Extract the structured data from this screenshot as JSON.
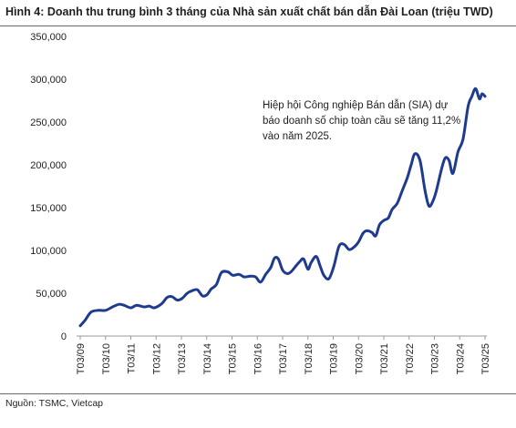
{
  "title": "Hình 4: Doanh thu trung bình 3 tháng của Nhà sản xuất chất bán dẫn Đài Loan (triệu TWD)",
  "source": "Nguồn: TSMC, Vietcap",
  "annotation": "Hiệp hội Công nghiệp Bán dẫn (SIA) dự báo doanh số chip toàn cầu sẽ tăng 11,2% vào năm 2025.",
  "colors": {
    "line": "#1f3b8f",
    "axis": "#9a9a9a"
  },
  "chart_data": {
    "type": "line",
    "title": "Hình 4: Doanh thu trung bình 3 tháng của Nhà sản xuất chất bán dẫn Đài Loan (triệu TWD)",
    "xlabel": "",
    "ylabel": "",
    "ylim": [
      0,
      350000
    ],
    "xlim": [
      2009.17,
      2025.17
    ],
    "grid": false,
    "legend": "none",
    "yticks": [
      0,
      50000,
      100000,
      150000,
      200000,
      250000,
      300000,
      350000
    ],
    "ytick_labels": [
      "0",
      "50,000",
      "100,000",
      "150,000",
      "200,000",
      "250,000",
      "300,000",
      "350,000"
    ],
    "xticks": [
      2009.17,
      2010.17,
      2011.17,
      2012.17,
      2013.17,
      2014.17,
      2015.17,
      2016.17,
      2017.17,
      2018.17,
      2019.17,
      2020.17,
      2021.17,
      2022.17,
      2023.17,
      2024.17,
      2025.17
    ],
    "xtick_labels": [
      "T03/09",
      "T03/10",
      "T03/11",
      "T03/12",
      "T03/13",
      "T03/14",
      "T03/15",
      "T03/16",
      "T03/17",
      "T03/18",
      "T03/19",
      "T03/20",
      "T03/21",
      "T03/22",
      "T03/23",
      "T03/24",
      "T03/25"
    ],
    "series": [
      {
        "x": [
          2009.17,
          2009.35,
          2009.6,
          2009.9,
          2010.17,
          2010.45,
          2010.7,
          2010.9,
          2011.17,
          2011.4,
          2011.7,
          2011.9,
          2012.1,
          2012.4,
          2012.6,
          2012.8,
          2013.0,
          2013.2,
          2013.4,
          2013.6,
          2013.8,
          2014.0,
          2014.17,
          2014.35,
          2014.55,
          2014.75,
          2015.0,
          2015.2,
          2015.45,
          2015.65,
          2015.9,
          2016.1,
          2016.3,
          2016.5,
          2016.7,
          2016.85,
          2017.0,
          2017.17,
          2017.35,
          2017.5,
          2017.7,
          2017.85,
          2018.0,
          2018.17,
          2018.3,
          2018.5,
          2018.65,
          2018.8,
          2019.0,
          2019.2,
          2019.4,
          2019.6,
          2019.8,
          2020.0,
          2020.17,
          2020.35,
          2020.5,
          2020.7,
          2020.85,
          2021.0,
          2021.17,
          2021.35,
          2021.5,
          2021.7,
          2021.9,
          2022.1,
          2022.25,
          2022.4,
          2022.6,
          2022.8,
          2022.95,
          2023.1,
          2023.25,
          2023.45,
          2023.6,
          2023.75,
          2023.9,
          2024.1,
          2024.3,
          2024.5,
          2024.65,
          2024.8,
          2024.95,
          2025.05,
          2025.17
        ],
        "values": [
          12000,
          18000,
          28000,
          30000,
          30000,
          34000,
          37000,
          36000,
          33000,
          36000,
          34000,
          35000,
          33000,
          38000,
          45000,
          46000,
          42000,
          44000,
          50000,
          53000,
          54000,
          47000,
          48000,
          55000,
          60000,
          74000,
          75000,
          71000,
          72000,
          69000,
          70000,
          69000,
          63000,
          72000,
          80000,
          91000,
          90000,
          77000,
          73000,
          75000,
          82000,
          87000,
          90000,
          78000,
          86000,
          93000,
          82000,
          71000,
          67000,
          82000,
          105000,
          107000,
          101000,
          104000,
          110000,
          120000,
          123000,
          121000,
          117000,
          130000,
          135000,
          138000,
          148000,
          155000,
          170000,
          185000,
          200000,
          213000,
          205000,
          170000,
          152000,
          157000,
          170000,
          195000,
          208000,
          205000,
          190000,
          215000,
          230000,
          268000,
          280000,
          289000,
          277000,
          283000,
          280000
        ]
      }
    ]
  }
}
